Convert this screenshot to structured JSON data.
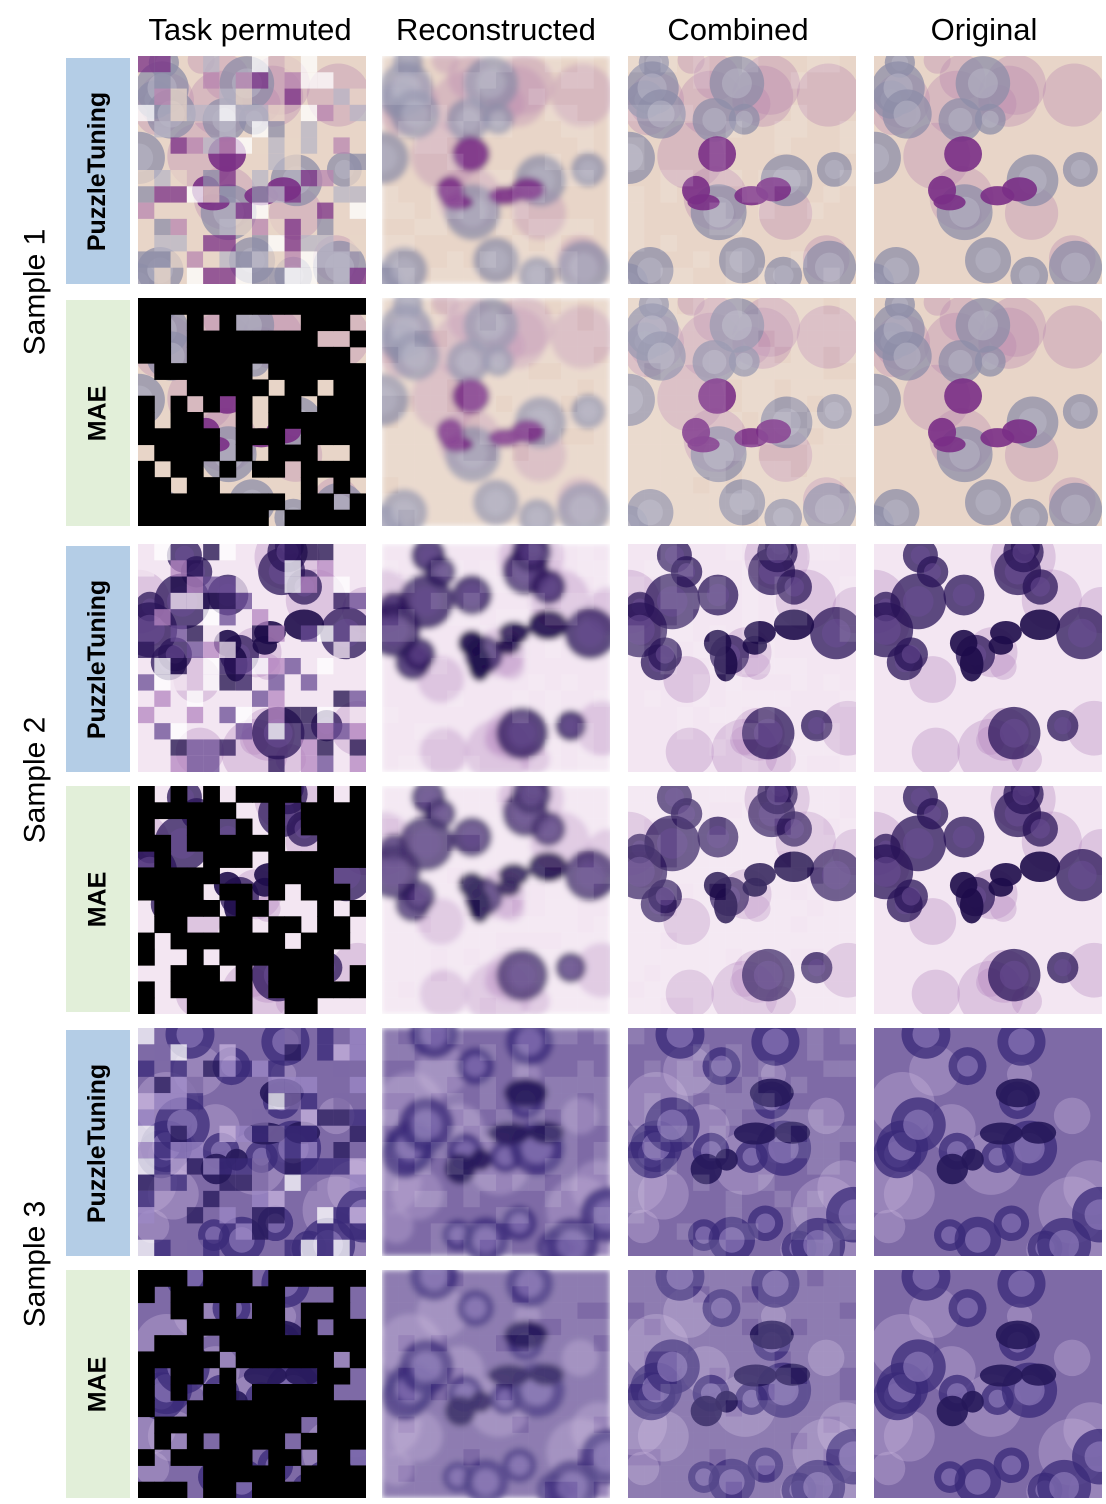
{
  "column_headers": [
    "Task permuted",
    "Reconstructed",
    "Combined",
    "Original"
  ],
  "methods": {
    "puzzletuning": {
      "label": "PuzzleTuning",
      "tab_color": "#b4cde6"
    },
    "mae": {
      "label": "MAE",
      "tab_color": "#e2efd9"
    }
  },
  "samples": [
    {
      "label": "Sample 1"
    },
    {
      "label": "Sample 2"
    },
    {
      "label": "Sample 3"
    }
  ],
  "palettes": {
    "sample1": {
      "bg": "#e8d5c8",
      "cell": "#8e8ea8",
      "cell_ring": "#b8b6c6",
      "nucleus": "#7a2f86",
      "stain": "#b886b0"
    },
    "sample2": {
      "bg": "#f3e6f2",
      "cell": "#2a1458",
      "cell_ring": "#6a4c94",
      "nucleus": "#1e0c4a",
      "stain": "#b486c0"
    },
    "sample3": {
      "bg": "#7e6aa6",
      "cell": "#3a2a78",
      "cell_ring": "#9c88c6",
      "nucleus": "#26185a",
      "stain": "#c8b4de"
    }
  },
  "masked_color": "#000000"
}
